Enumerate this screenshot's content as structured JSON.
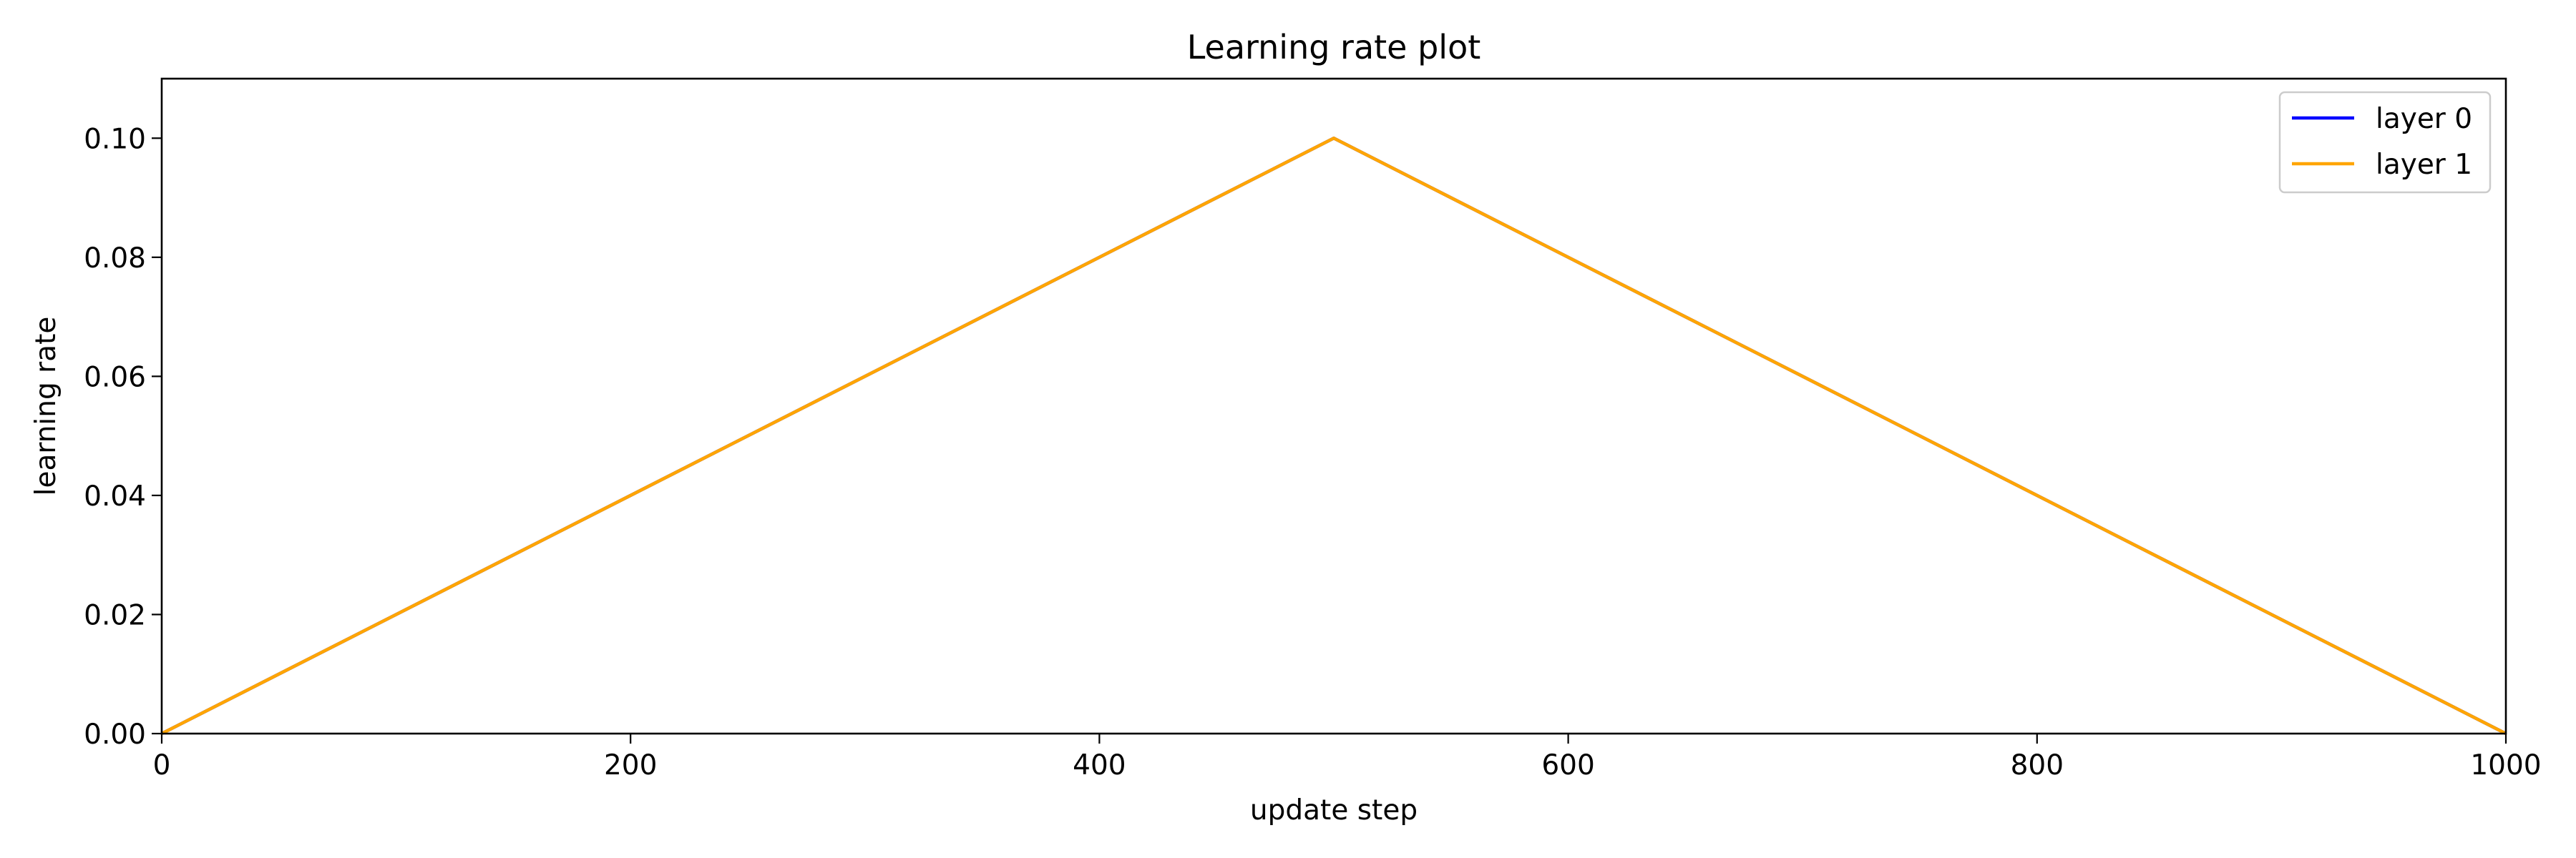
{
  "chart_data": {
    "type": "line",
    "title": "Learning rate plot",
    "xlabel": "update step",
    "ylabel": "learning rate",
    "xlim": [
      0,
      1000
    ],
    "ylim": [
      0,
      0.11
    ],
    "x_ticks": [
      0,
      200,
      400,
      600,
      800,
      1000
    ],
    "x_tick_labels": [
      "0",
      "200",
      "400",
      "600",
      "800",
      "1000"
    ],
    "y_ticks": [
      0,
      0.02,
      0.04,
      0.06,
      0.08,
      0.1
    ],
    "y_tick_labels": [
      "0.00",
      "0.02",
      "0.04",
      "0.06",
      "0.08",
      "0.10"
    ],
    "grid": false,
    "legend_position": "top-right",
    "series": [
      {
        "name": "layer 0",
        "color": "#0000ff",
        "x": [
          0,
          500,
          1000
        ],
        "y": [
          0,
          0.1,
          0
        ]
      },
      {
        "name": "layer 1",
        "color": "#ffa500",
        "x": [
          0,
          500,
          1000
        ],
        "y": [
          0,
          0.1,
          0
        ]
      }
    ]
  }
}
